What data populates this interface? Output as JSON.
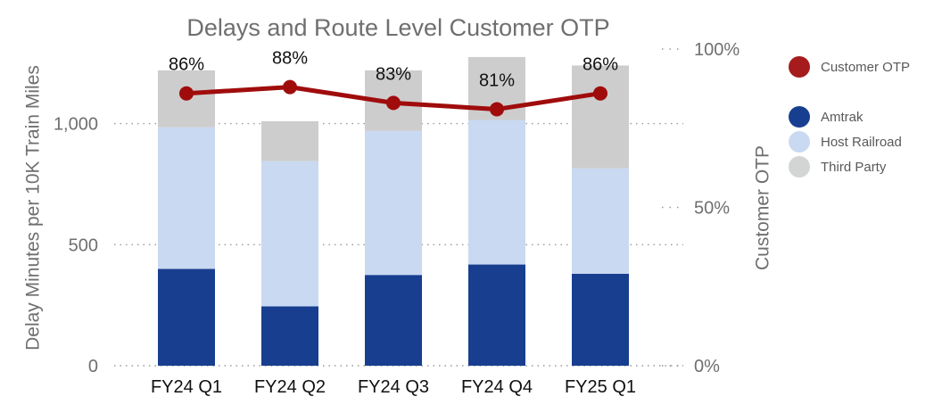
{
  "chart_data": {
    "type": "bar",
    "title": "Delays and Route Level Customer OTP",
    "categories": [
      "FY24 Q1",
      "FY24 Q2",
      "FY24 Q3",
      "FY24 Q4",
      "FY25 Q1"
    ],
    "stacked": true,
    "series": [
      {
        "name": "Amtrak",
        "type": "bar",
        "color": "#183e8f",
        "values": [
          400,
          245,
          375,
          418,
          380
        ]
      },
      {
        "name": "Host Railroad",
        "type": "bar",
        "color": "#c9d9f1",
        "values": [
          585,
          600,
          595,
          597,
          435
        ]
      },
      {
        "name": "Third Party",
        "type": "bar",
        "color": "#cdcdcd",
        "values": [
          235,
          165,
          250,
          260,
          425
        ]
      },
      {
        "name": "Customer OTP",
        "type": "line",
        "axis": "right",
        "color": "#a00c0c",
        "values": [
          86,
          88,
          83,
          81,
          86
        ],
        "labels": [
          "86%",
          "88%",
          "83%",
          "81%",
          "86%"
        ]
      }
    ],
    "y_left": {
      "label": "Delay Minutes per 10K Train Miles",
      "ticks": [
        0,
        500,
        1000
      ],
      "tick_labels": [
        "0",
        "500",
        "1,000"
      ],
      "min": 0,
      "max": 1400
    },
    "y_right": {
      "label": "Customer OTP",
      "ticks": [
        0,
        50,
        100
      ],
      "tick_labels": [
        "0%",
        "50%",
        "100%"
      ],
      "min": 0,
      "max": 100
    },
    "grid": "dotted horizontal",
    "legend_position": "right"
  },
  "legend": {
    "otp": {
      "label": "Customer OTP",
      "color": "#a61c1c"
    },
    "items": [
      {
        "label": "Amtrak",
        "color": "#183e8f"
      },
      {
        "label": "Host Railroad",
        "color": "#c9d9f1"
      },
      {
        "label": "Third Party",
        "color": "#d2d5d4"
      }
    ]
  }
}
